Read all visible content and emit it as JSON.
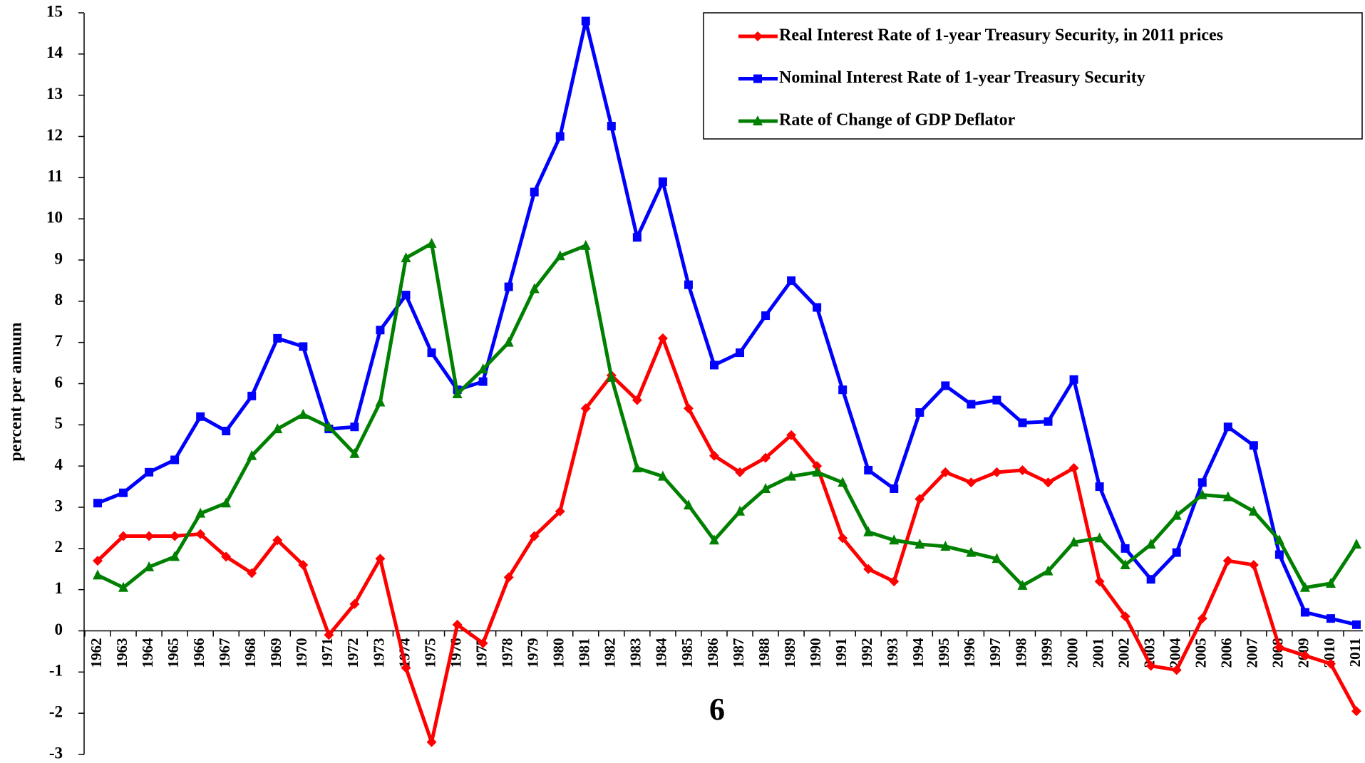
{
  "chart_data": {
    "type": "line",
    "y_label": "percent per annum",
    "annotation": "6",
    "categories": [
      "1962",
      "1963",
      "1964",
      "1965",
      "1966",
      "1967",
      "1968",
      "1969",
      "1970",
      "1971",
      "1972",
      "1973",
      "1974",
      "1975",
      "1976",
      "1977",
      "1978",
      "1979",
      "1980",
      "1981",
      "1982",
      "1983",
      "1984",
      "1985",
      "1986",
      "1987",
      "1988",
      "1989",
      "1990",
      "1991",
      "1992",
      "1993",
      "1994",
      "1995",
      "1996",
      "1997",
      "1998",
      "1999",
      "2000",
      "2001",
      "2002",
      "2003",
      "2004",
      "2005",
      "2006",
      "2007",
      "2008",
      "2009",
      "2010",
      "2011"
    ],
    "series": [
      {
        "name": "Real Interest Rate of 1-year Treasury Security, in 2011 prices",
        "color": "#ff0000",
        "marker": "diamond",
        "values": [
          1.7,
          2.3,
          2.3,
          2.3,
          2.35,
          1.8,
          1.4,
          2.2,
          1.6,
          -0.1,
          0.65,
          1.75,
          -0.9,
          -2.7,
          0.15,
          -0.3,
          1.3,
          2.3,
          2.9,
          5.4,
          6.2,
          5.6,
          7.1,
          5.4,
          4.25,
          3.85,
          4.2,
          4.75,
          4.0,
          2.25,
          1.5,
          1.2,
          3.2,
          3.85,
          3.6,
          3.85,
          3.9,
          3.6,
          3.95,
          1.2,
          0.35,
          -0.85,
          -0.95,
          0.3,
          1.7,
          1.6,
          -0.4,
          -0.6,
          -0.8,
          -1.95
        ]
      },
      {
        "name": "Nominal Interest Rate of 1-year Treasury Security",
        "color": "#0000ff",
        "marker": "square",
        "values": [
          3.1,
          3.35,
          3.85,
          4.15,
          5.2,
          4.85,
          5.7,
          7.1,
          6.9,
          4.9,
          4.95,
          7.3,
          8.15,
          6.75,
          5.85,
          6.05,
          8.35,
          10.65,
          12.0,
          14.8,
          12.25,
          9.55,
          10.9,
          8.4,
          6.45,
          6.75,
          7.65,
          8.5,
          7.85,
          5.85,
          3.9,
          3.45,
          5.3,
          5.95,
          5.5,
          5.6,
          5.05,
          5.08,
          6.1,
          3.5,
          2.0,
          1.25,
          1.9,
          3.6,
          4.95,
          4.5,
          1.85,
          0.45,
          0.3,
          0.15
        ]
      },
      {
        "name": "Rate of Change of GDP Deflator",
        "color": "#008000",
        "marker": "triangle",
        "values": [
          1.35,
          1.05,
          1.55,
          1.8,
          2.85,
          3.1,
          4.25,
          4.9,
          5.25,
          4.95,
          4.3,
          5.55,
          9.05,
          9.4,
          5.75,
          6.35,
          7.0,
          8.3,
          9.1,
          9.35,
          6.15,
          3.95,
          3.75,
          3.05,
          2.2,
          2.9,
          3.45,
          3.75,
          3.85,
          3.6,
          2.4,
          2.2,
          2.1,
          2.05,
          1.9,
          1.75,
          1.1,
          1.45,
          2.15,
          2.25,
          1.6,
          2.1,
          2.8,
          3.3,
          3.25,
          2.9,
          2.2,
          1.05,
          1.15,
          2.1
        ]
      }
    ],
    "ylim": [
      -3,
      15
    ],
    "yticks": [
      -3,
      -2,
      -1,
      0,
      1,
      2,
      3,
      4,
      5,
      6,
      7,
      8,
      9,
      10,
      11,
      12,
      13,
      14,
      15
    ],
    "legend": "top-right",
    "grid": false
  }
}
